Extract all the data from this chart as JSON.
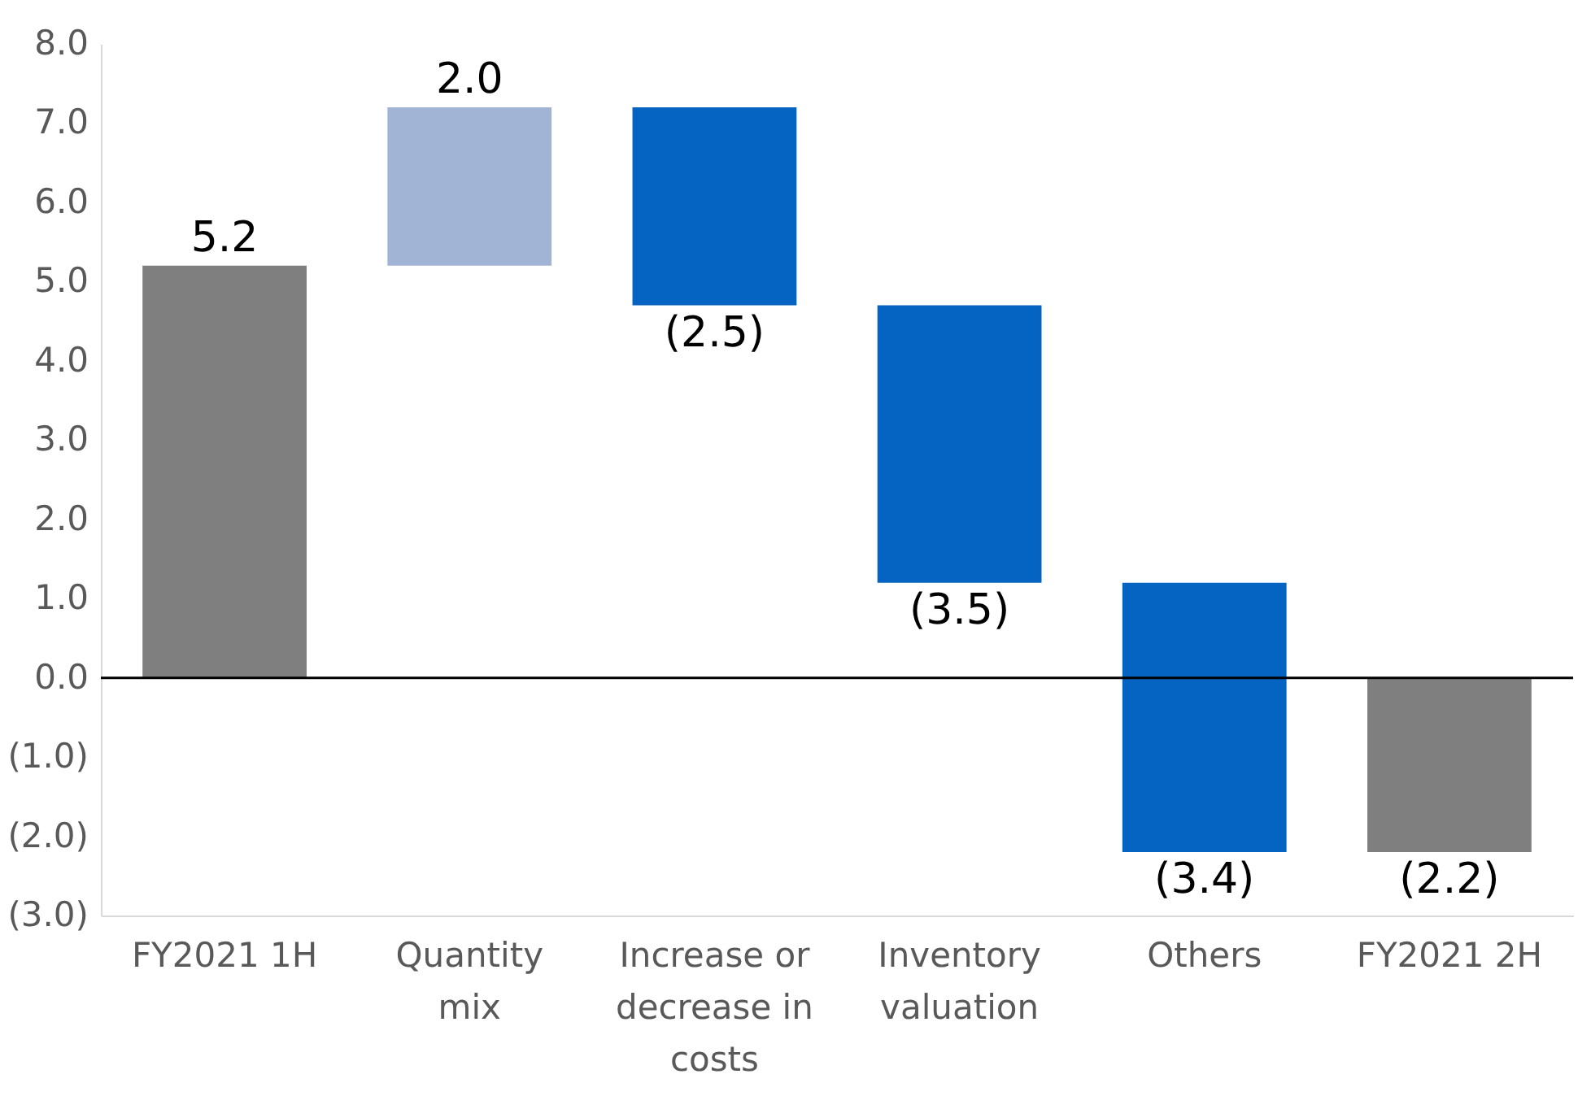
{
  "chart_data": {
    "type": "bar",
    "categories": [
      "FY2021 1H",
      "Quantity mix",
      "Increase or decrease in costs",
      "Inventory valuation",
      "Others",
      "FY2021 2H"
    ],
    "base": [
      0,
      5.2,
      7.2,
      4.7,
      1.2,
      0
    ],
    "values": [
      5.2,
      2.0,
      -2.5,
      -3.5,
      -3.4,
      -2.2
    ],
    "colors": [
      "#7f7f7f",
      "#a2b4d6",
      "#0563c1",
      "#0563c1",
      "#0563c1",
      "#7f7f7f"
    ],
    "value_labels": [
      "5.2",
      "2.0",
      "(2.5)",
      "(3.5)",
      "(3.4)",
      "(2.2)"
    ],
    "ylim": [
      -3,
      8
    ],
    "yticks": [
      {
        "value": -3,
        "label": "(3.0)"
      },
      {
        "value": -2,
        "label": "(2.0)"
      },
      {
        "value": -1,
        "label": "(1.0)"
      },
      {
        "value": 0,
        "label": "0.0"
      },
      {
        "value": 1,
        "label": "1.0"
      },
      {
        "value": 2,
        "label": "2.0"
      },
      {
        "value": 3,
        "label": "3.0"
      },
      {
        "value": 4,
        "label": "4.0"
      },
      {
        "value": 5,
        "label": "5.0"
      },
      {
        "value": 6,
        "label": "6.0"
      },
      {
        "value": 7,
        "label": "7.0"
      },
      {
        "value": 8,
        "label": "8.0"
      }
    ],
    "ref_lines": [
      {
        "axis": "y",
        "value": 0,
        "color": "#000000"
      }
    ]
  }
}
